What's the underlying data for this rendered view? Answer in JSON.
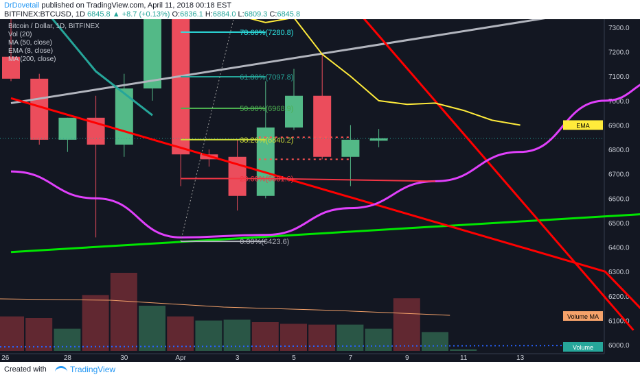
{
  "header": {
    "author": "DrDovetail",
    "published_text": "published on TradingView.com, April 11, 2018 00:18 EST",
    "symbol": "BITFINEX:BTCUSD, 1D",
    "last": "6845.8",
    "change_arrow": "▲",
    "change": "+8.7 (+0.13%)",
    "ohlc_labels": [
      "O:",
      "H:",
      "L:",
      "C:"
    ],
    "ohlc_values": [
      "6836.1",
      "6884.0",
      "6809.3",
      "6845.8"
    ]
  },
  "legend": [
    "Bitcoin / Dollar, 1D, BITFINEX",
    "Vol (20)",
    "MA (50, close)",
    "EMA (8, close)",
    "MA (200, close)"
  ],
  "footer": {
    "created": "Created with",
    "brand": "TradingView"
  },
  "colors": {
    "bg": "#131722",
    "up": "#53b987",
    "down": "#eb4d5c",
    "ema": "#ffeb3b",
    "ma200": "#e040fb",
    "trend_gray": "#b2b5be",
    "trend_red": "#ff0000",
    "trend_green": "#00e600",
    "ma50": "#26a69a",
    "ma_vol": "#f5a26a"
  },
  "chart_data": {
    "type": "candlestick",
    "y_axis": {
      "min": 6000,
      "max": 7400,
      "ticks": [
        7300,
        7200,
        7100,
        7000,
        6900,
        6800,
        6700,
        6600,
        6500,
        6400,
        6300,
        6200,
        6100,
        6000
      ]
    },
    "x_ticks": [
      "26",
      "28",
      "30",
      "Apr",
      "3",
      "5",
      "7",
      "9",
      "11",
      "13"
    ],
    "candles": [
      {
        "o": 7180,
        "h": 7400,
        "l": 7080,
        "c": 7090
      },
      {
        "o": 7090,
        "h": 7110,
        "l": 6820,
        "c": 6840
      },
      {
        "o": 6840,
        "h": 6930,
        "l": 6790,
        "c": 6930
      },
      {
        "o": 6930,
        "h": 7020,
        "l": 6440,
        "c": 6820
      },
      {
        "o": 6820,
        "h": 7110,
        "l": 6770,
        "c": 7050
      },
      {
        "o": 7050,
        "h": 7400,
        "l": 7000,
        "c": 7400
      },
      {
        "o": 7350,
        "h": 7400,
        "l": 6650,
        "c": 6780
      },
      {
        "o": 6780,
        "h": 6800,
        "l": 6730,
        "c": 6760
      },
      {
        "o": 6770,
        "h": 6840,
        "l": 6550,
        "c": 6610
      },
      {
        "o": 6610,
        "h": 7080,
        "l": 6600,
        "c": 6890
      },
      {
        "o": 6890,
        "h": 7130,
        "l": 6880,
        "c": 7020
      },
      {
        "o": 7020,
        "h": 7190,
        "l": 6760,
        "c": 6770
      },
      {
        "o": 6770,
        "h": 6900,
        "l": 6650,
        "c": 6840
      },
      {
        "o": 6836.1,
        "h": 6884.0,
        "l": 6809.3,
        "c": 6845.8
      }
    ],
    "volume": [
      {
        "v": 0.42,
        "dir": "down"
      },
      {
        "v": 0.4,
        "dir": "down"
      },
      {
        "v": 0.27,
        "dir": "up"
      },
      {
        "v": 0.68,
        "dir": "down"
      },
      {
        "v": 0.95,
        "dir": "down"
      },
      {
        "v": 0.55,
        "dir": "up"
      },
      {
        "v": 0.42,
        "dir": "down"
      },
      {
        "v": 0.37,
        "dir": "up"
      },
      {
        "v": 0.38,
        "dir": "up"
      },
      {
        "v": 0.35,
        "dir": "down"
      },
      {
        "v": 0.33,
        "dir": "down"
      },
      {
        "v": 0.32,
        "dir": "down"
      },
      {
        "v": 0.32,
        "dir": "up"
      },
      {
        "v": 0.27,
        "dir": "up"
      },
      {
        "v": 0.64,
        "dir": "down"
      },
      {
        "v": 0.23,
        "dir": "up"
      },
      {
        "v": 0.02,
        "dir": "up"
      }
    ],
    "ema": [
      [
        7,
        7400
      ],
      [
        8,
        7350
      ],
      [
        9,
        7320
      ],
      [
        10,
        7340
      ],
      [
        11,
        7190
      ],
      [
        12,
        7100
      ],
      [
        13,
        7000
      ],
      [
        14,
        6985
      ],
      [
        15,
        6990
      ],
      [
        16,
        6960
      ],
      [
        17,
        6920
      ],
      [
        18,
        6900
      ]
    ],
    "ma50": [
      [
        1,
        7400
      ],
      [
        3,
        7120
      ],
      [
        5,
        6940
      ]
    ],
    "ma200": [
      [
        0,
        6710
      ],
      [
        3,
        6600
      ],
      [
        6,
        6440
      ],
      [
        9,
        6450
      ],
      [
        12,
        6560
      ],
      [
        15,
        6670
      ],
      [
        18,
        6790
      ],
      [
        21,
        7000
      ],
      [
        23,
        7090
      ]
    ],
    "trend_gray": [
      [
        0,
        6990
      ],
      [
        19,
        7340
      ]
    ],
    "trend_red_1": [
      [
        0,
        7010
      ],
      [
        21,
        6300
      ],
      [
        23,
        6060
      ]
    ],
    "trend_red_2": [
      [
        12,
        7400
      ],
      [
        22,
        6060
      ]
    ],
    "trend_green": [
      [
        0,
        6380
      ],
      [
        23,
        6540
      ]
    ],
    "fib": [
      {
        "label": "78.60%(7280.8)",
        "value": 7280.8,
        "color": "#2ee6e6"
      },
      {
        "label": "61.80%(7097.8)",
        "value": 7097.8,
        "color": "#26a69a"
      },
      {
        "label": "50.00%(6968.9)",
        "value": 6968.9,
        "color": "#4caf50"
      },
      {
        "label": "38.20%(6840.2)",
        "value": 6840.2,
        "color": "#cddc39"
      },
      {
        "label": "23.60%(6681.0)",
        "value": 6681.0,
        "color": "#f23645"
      },
      {
        "label": "0.00%(6423.6)",
        "value": 6423.6,
        "color": "#b2b5be"
      }
    ],
    "labels": {
      "ema_tag": "EMA",
      "volume_ma_tag": "Volume MA",
      "volume_tag": "Volume"
    }
  }
}
